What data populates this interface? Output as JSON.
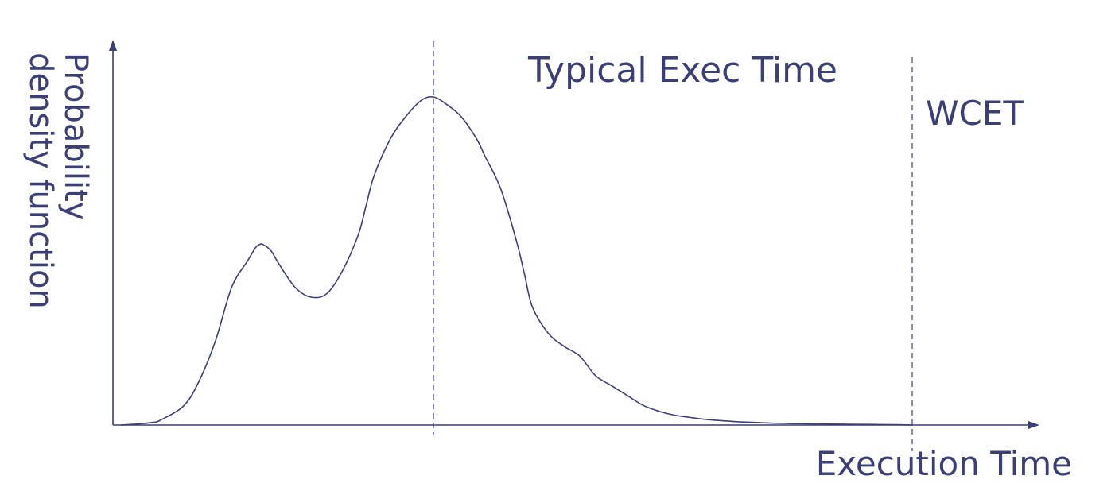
{
  "chart_data": {
    "type": "line",
    "title": "",
    "xlabel": "Execution Time",
    "ylabel_lines": [
      "Probability",
      "density function"
    ],
    "xlim": [
      0,
      100
    ],
    "ylim": [
      0,
      100
    ],
    "grid": false,
    "legend": "none",
    "series": [
      {
        "x": [
          0,
          2,
          4,
          5,
          8,
          10,
          12,
          14,
          16,
          17,
          17.5,
          18,
          19,
          20,
          22,
          24,
          26,
          28,
          30,
          31,
          32,
          34,
          36,
          38,
          39.5,
          41,
          43,
          45,
          46,
          48,
          50,
          51,
          52,
          54,
          56,
          58,
          60,
          62,
          64,
          66,
          68,
          70,
          72,
          74,
          76,
          78,
          80,
          82,
          84,
          86,
          88,
          90,
          92,
          94,
          96,
          98,
          100
        ],
        "y": [
          0,
          0.3,
          0.8,
          1.5,
          6,
          14,
          26,
          42,
          50,
          54,
          55,
          55,
          53,
          49,
          42,
          39,
          40,
          47,
          58,
          67,
          76,
          87,
          94,
          99,
          100,
          98,
          94,
          87,
          82,
          72,
          56,
          46,
          36,
          28,
          24,
          21,
          15,
          12,
          9,
          6,
          4.2,
          3,
          2.3,
          1.7,
          1.3,
          1,
          0.8,
          0.6,
          0.5,
          0.4,
          0.35,
          0.3,
          0.25,
          0.2,
          0.15,
          0.1,
          0
        ]
      }
    ],
    "annotations": [
      {
        "label": "Typical Exec Time",
        "x": 39.5
      },
      {
        "label": "WCET",
        "x": 100
      }
    ],
    "colors": {
      "ink": "#3b3f75"
    }
  }
}
